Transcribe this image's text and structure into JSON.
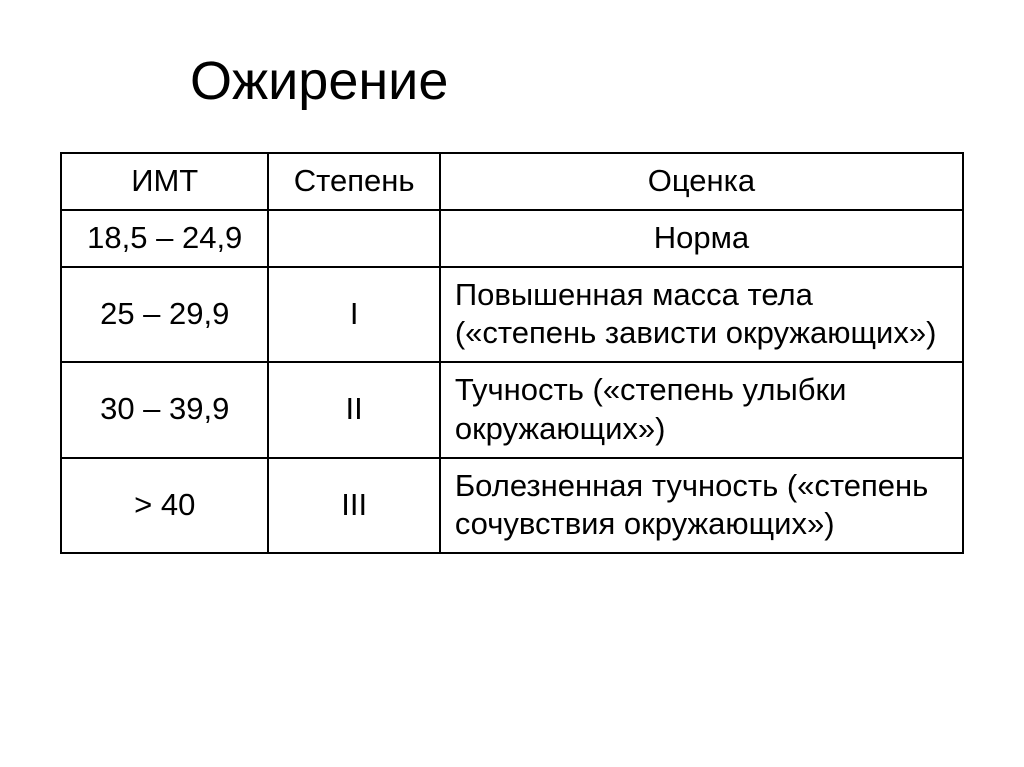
{
  "title": "Ожирение",
  "table": {
    "headers": {
      "imt": "ИМТ",
      "degree": "Степень",
      "assessment": "Оценка"
    },
    "rows": [
      {
        "imt": "18,5 – 24,9",
        "degree": "",
        "assessment": "Норма",
        "assessment_align": "center"
      },
      {
        "imt": "25 – 29,9",
        "degree": "I",
        "assessment": "Повышенная масса тела («степень зависти окружающих»)",
        "assessment_align": "left"
      },
      {
        "imt": "30 – 39,9",
        "degree": "II",
        "assessment": "Тучность («степень улыбки окружающих»)",
        "assessment_align": "left"
      },
      {
        "imt": "> 40",
        "degree": "III",
        "assessment": "Болезненная тучность («степень сочувствия окружающих»)",
        "assessment_align": "left"
      }
    ]
  },
  "styling": {
    "background_color": "#ffffff",
    "border_color": "#000000",
    "text_color": "#000000",
    "title_fontsize": 54,
    "cell_fontsize": 31,
    "border_width": 2,
    "col_widths_pct": [
      23,
      19,
      58
    ]
  }
}
